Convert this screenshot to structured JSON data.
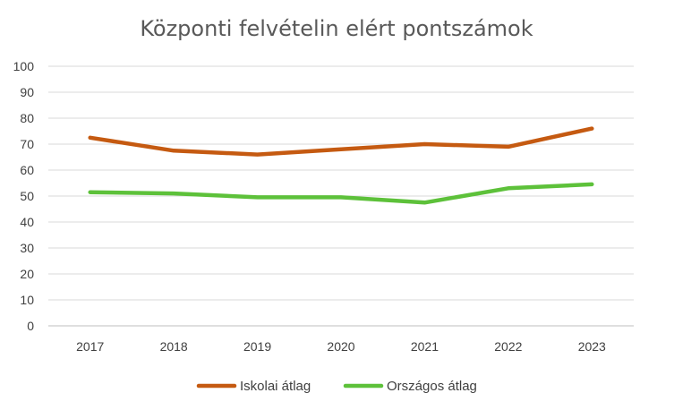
{
  "chart_data": {
    "type": "line",
    "title": "Központi felvételin elért pontszámok",
    "xlabel": "",
    "ylabel": "",
    "categories": [
      "2017",
      "2018",
      "2019",
      "2020",
      "2021",
      "2022",
      "2023"
    ],
    "ylim": [
      0,
      100
    ],
    "yticks": [
      0,
      10,
      20,
      30,
      40,
      50,
      60,
      70,
      80,
      90,
      100
    ],
    "grid": true,
    "legend_position": "bottom",
    "series": [
      {
        "name": "Iskolai átlag",
        "color": "#C55A11",
        "values": [
          72.5,
          67.5,
          66,
          68,
          70,
          69,
          76
        ]
      },
      {
        "name": "Országos átlag",
        "color": "#5DC13A",
        "values": [
          51.5,
          51,
          49.5,
          49.5,
          47.5,
          53,
          54.5
        ]
      }
    ]
  }
}
